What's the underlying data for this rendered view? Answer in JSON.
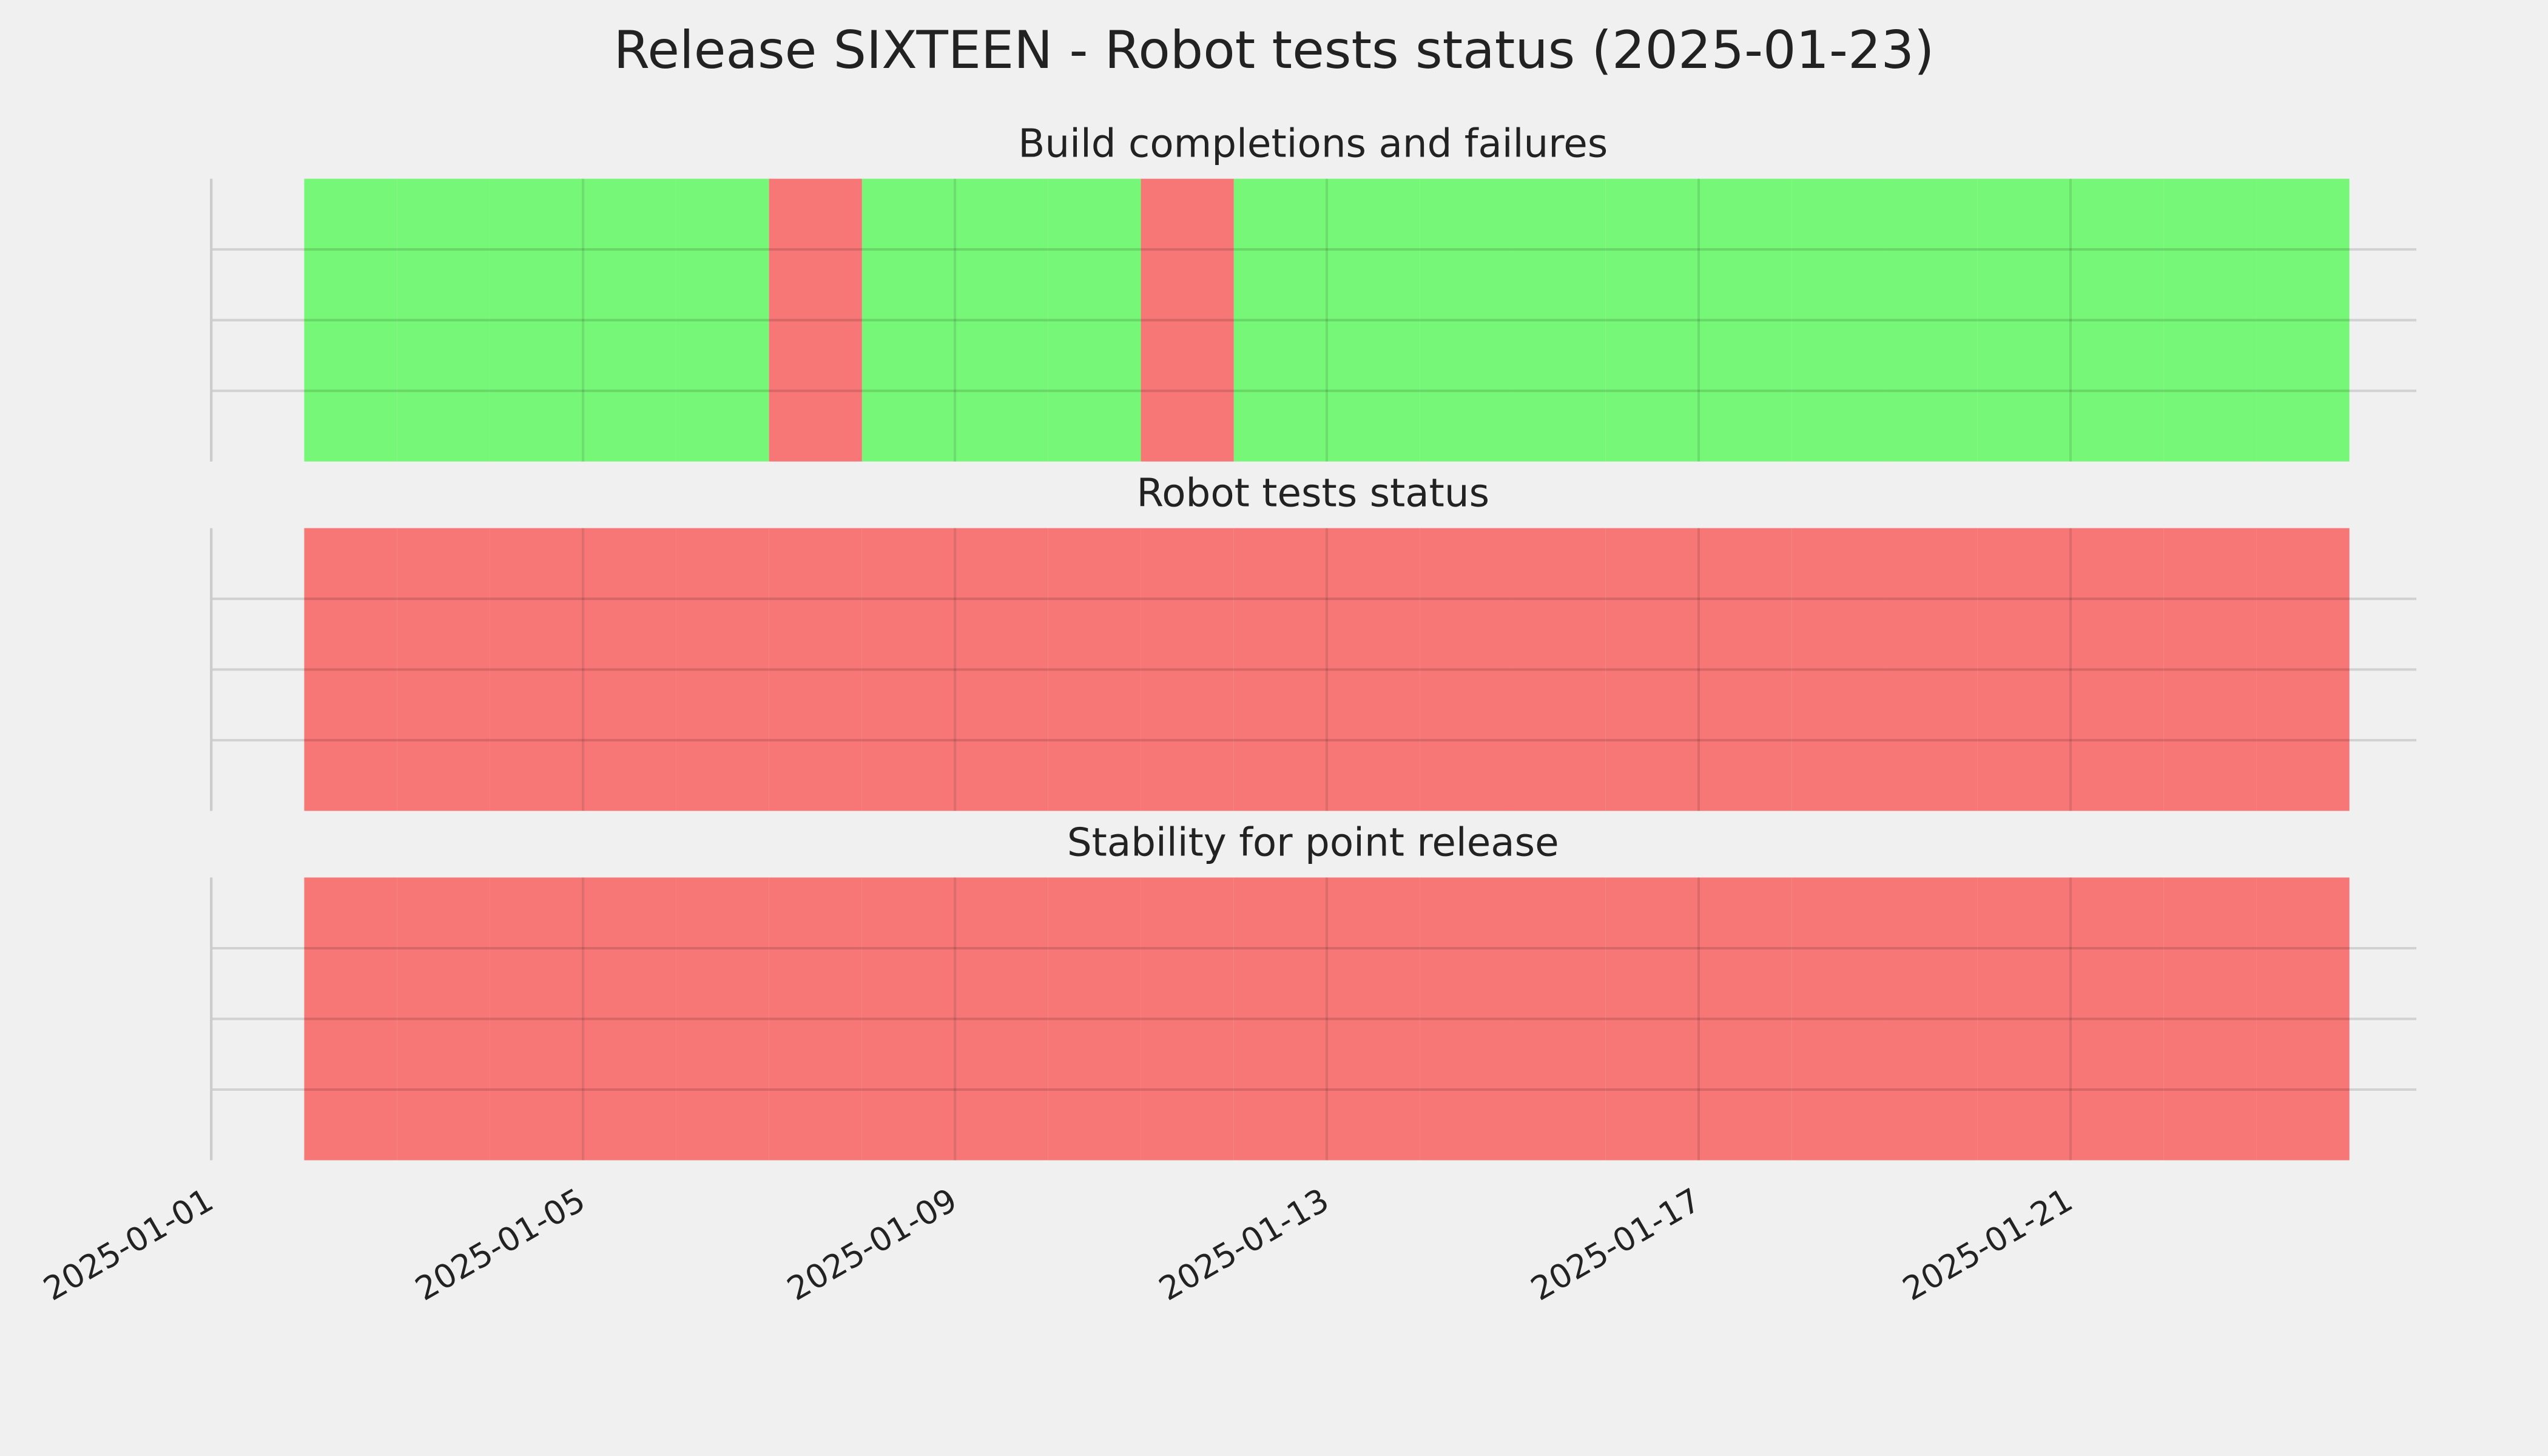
{
  "title": "Release SIXTEEN - Robot tests status (2025-01-23)",
  "chart_data": [
    {
      "type": "span",
      "title": "Build completions and failures",
      "x": [
        "2025-01-02",
        "2025-01-03",
        "2025-01-04",
        "2025-01-05",
        "2025-01-06",
        "2025-01-07",
        "2025-01-08",
        "2025-01-09",
        "2025-01-10",
        "2025-01-11",
        "2025-01-12",
        "2025-01-13",
        "2025-01-14",
        "2025-01-15",
        "2025-01-16",
        "2025-01-17",
        "2025-01-18",
        "2025-01-19",
        "2025-01-20",
        "2025-01-21",
        "2025-01-22",
        "2025-01-23"
      ],
      "colors": [
        "#77f777",
        "#77f777",
        "#77f777",
        "#77f777",
        "#77f777",
        "#f77676",
        "#77f777",
        "#77f777",
        "#77f777",
        "#f77676",
        "#77f777",
        "#77f777",
        "#77f777",
        "#77f777",
        "#77f777",
        "#77f777",
        "#77f777",
        "#77f777",
        "#77f777",
        "#77f777",
        "#77f777",
        "#77f777"
      ],
      "ylim": [
        0,
        1
      ],
      "yticks": [
        0.25,
        0.5,
        0.75
      ],
      "grid": true
    },
    {
      "type": "span",
      "title": "Robot tests status",
      "x": [
        "2025-01-02",
        "2025-01-03",
        "2025-01-04",
        "2025-01-05",
        "2025-01-06",
        "2025-01-07",
        "2025-01-08",
        "2025-01-09",
        "2025-01-10",
        "2025-01-11",
        "2025-01-12",
        "2025-01-13",
        "2025-01-14",
        "2025-01-15",
        "2025-01-16",
        "2025-01-17",
        "2025-01-18",
        "2025-01-19",
        "2025-01-20",
        "2025-01-21",
        "2025-01-22",
        "2025-01-23"
      ],
      "colors": [
        "#f77676",
        "#f77676",
        "#f77676",
        "#f77676",
        "#f77676",
        "#f77676",
        "#f77676",
        "#f77676",
        "#f77676",
        "#f77676",
        "#f77676",
        "#f77676",
        "#f77676",
        "#f77676",
        "#f77676",
        "#f77676",
        "#f77676",
        "#f77676",
        "#f77676",
        "#f77676",
        "#f77676",
        "#f77676"
      ],
      "ylim": [
        0,
        1
      ],
      "yticks": [
        0.25,
        0.5,
        0.75
      ],
      "grid": true
    },
    {
      "type": "span",
      "title": "Stability for point release",
      "x": [
        "2025-01-02",
        "2025-01-03",
        "2025-01-04",
        "2025-01-05",
        "2025-01-06",
        "2025-01-07",
        "2025-01-08",
        "2025-01-09",
        "2025-01-10",
        "2025-01-11",
        "2025-01-12",
        "2025-01-13",
        "2025-01-14",
        "2025-01-15",
        "2025-01-16",
        "2025-01-17",
        "2025-01-18",
        "2025-01-19",
        "2025-01-20",
        "2025-01-21",
        "2025-01-22",
        "2025-01-23"
      ],
      "colors": [
        "#f77676",
        "#f77676",
        "#f77676",
        "#f77676",
        "#f77676",
        "#f77676",
        "#f77676",
        "#f77676",
        "#f77676",
        "#f77676",
        "#f77676",
        "#f77676",
        "#f77676",
        "#f77676",
        "#f77676",
        "#f77676",
        "#f77676",
        "#f77676",
        "#f77676",
        "#f77676",
        "#f77676",
        "#f77676"
      ],
      "ylim": [
        0,
        1
      ],
      "yticks": [
        0.25,
        0.5,
        0.75
      ],
      "grid": true,
      "xlim": [
        "2025-01-01",
        "2025-01-25"
      ],
      "xticks": [
        "2025-01-01",
        "2025-01-05",
        "2025-01-09",
        "2025-01-13",
        "2025-01-17",
        "2025-01-21"
      ]
    }
  ]
}
